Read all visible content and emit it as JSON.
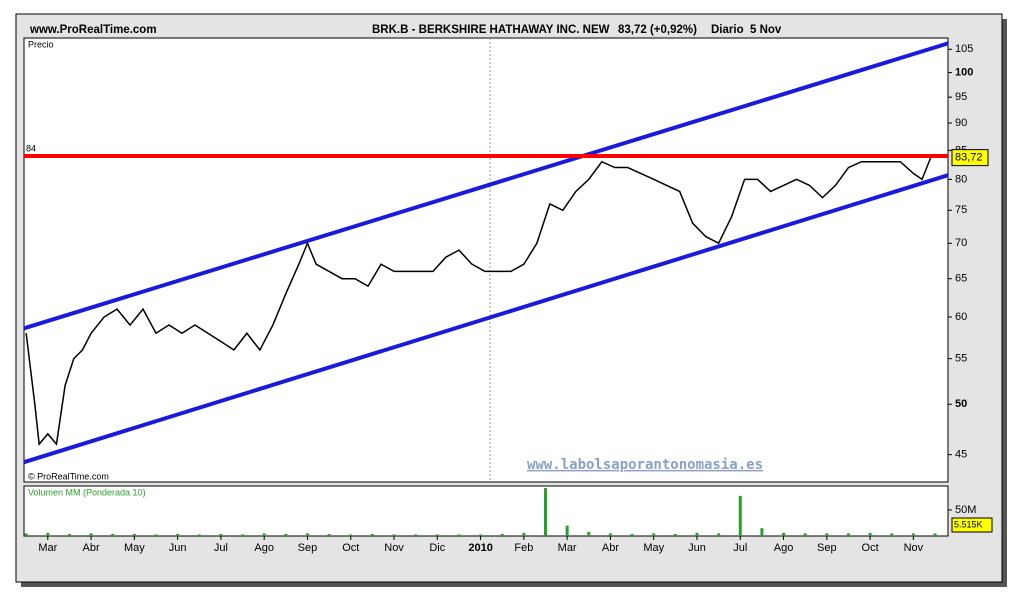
{
  "header": {
    "site": "www.ProRealTime.com",
    "instrument": "BRK.B - BERKSHIRE HATHAWAY INC. NEW",
    "quote": "83,72 (+0,92%)",
    "period": "Diario  5 Nov"
  },
  "chart_data": [
    {
      "type": "line",
      "y_axis_label": "Precio",
      "copyright": "© ProRealTime.com",
      "watermark": "www.labolsaporantonomasia.es",
      "color": "#000000",
      "log_scale": true,
      "x": [
        -0.5,
        -0.3,
        -0.2,
        0,
        0.2,
        0.4,
        0.6,
        0.8,
        1.0,
        1.3,
        1.6,
        1.9,
        2.2,
        2.5,
        2.8,
        3.1,
        3.4,
        3.7,
        4.0,
        4.3,
        4.6,
        4.9,
        5.2,
        5.5,
        5.8,
        6.0,
        6.2,
        6.5,
        6.8,
        7.1,
        7.4,
        7.7,
        8.0,
        8.3,
        8.6,
        8.9,
        9.2,
        9.5,
        9.8,
        10.1,
        10.4,
        10.7,
        11.0,
        11.3,
        11.6,
        11.9,
        12.2,
        12.5,
        12.8,
        13.1,
        13.4,
        13.7,
        14.0,
        14.3,
        14.6,
        14.9,
        15.2,
        15.5,
        15.8,
        16.1,
        16.4,
        16.7,
        17.0,
        17.3,
        17.6,
        17.9,
        18.2,
        18.5,
        18.8,
        19.1,
        19.4,
        19.7,
        20.0,
        20.2,
        20.4
      ],
      "values": [
        58,
        50,
        46,
        47,
        46,
        52,
        55,
        56,
        58,
        60,
        61,
        59,
        61,
        58,
        59,
        58,
        59,
        58,
        57,
        56,
        58,
        56,
        59,
        63,
        67,
        70,
        67,
        66,
        65,
        65,
        64,
        67,
        66,
        66,
        66,
        66,
        68,
        69,
        67,
        66,
        66,
        66,
        67,
        70,
        76,
        75,
        78,
        80,
        83,
        82,
        82,
        81,
        80,
        79,
        78,
        73,
        71,
        70,
        74,
        80,
        80,
        78,
        79,
        80,
        79,
        77,
        79,
        82,
        83,
        83,
        83,
        83,
        81,
        80,
        83.72
      ],
      "last_price": {
        "value": 83.72,
        "label": "83,72"
      },
      "last_price_color": "#ffff00",
      "trend_lines": [
        {
          "x": [
            -0.55,
            20.8
          ],
          "values": [
            58.6,
            106.3
          ],
          "color": "#1a1adb"
        },
        {
          "x": [
            -0.55,
            20.8
          ],
          "values": [
            44.3,
            80.7
          ],
          "color": "#1a1adb"
        }
      ],
      "hline": 84,
      "hline_color": "#ff0000",
      "xlim": [
        -0.55,
        20.8
      ],
      "xticks": [
        {
          "value": 0,
          "label": "Mar"
        },
        {
          "value": 1,
          "label": "Abr"
        },
        {
          "value": 2,
          "label": "May"
        },
        {
          "value": 3,
          "label": "Jun"
        },
        {
          "value": 4,
          "label": "Jul"
        },
        {
          "value": 5,
          "label": "Ago"
        },
        {
          "value": 6,
          "label": "Sep"
        },
        {
          "value": 7,
          "label": "Oct"
        },
        {
          "value": 8,
          "label": "Nov"
        },
        {
          "value": 9,
          "label": "Dic"
        },
        {
          "value": 10,
          "label": "2010"
        },
        {
          "value": 11,
          "label": "Feb"
        },
        {
          "value": 12,
          "label": "Mar"
        },
        {
          "value": 13,
          "label": "Abr"
        },
        {
          "value": 14,
          "label": "May"
        },
        {
          "value": 15,
          "label": "Jun"
        },
        {
          "value": 16,
          "label": "Jul"
        },
        {
          "value": 17,
          "label": "Ago"
        },
        {
          "value": 18,
          "label": "Sep"
        },
        {
          "value": 19,
          "label": "Oct"
        },
        {
          "value": 20,
          "label": "Nov"
        }
      ],
      "ylim": [
        42.5,
        107.5
      ],
      "yticks": [
        45,
        50,
        55,
        60,
        65,
        70,
        75,
        80,
        85,
        90,
        95,
        100,
        105
      ]
    },
    {
      "type": "bar",
      "title": "Volumen MM (Ponderada 10)",
      "color": "#2aa02a",
      "x": [
        -0.5,
        0,
        0.5,
        1,
        1.5,
        2,
        2.5,
        3,
        3.5,
        4,
        4.5,
        5,
        5.5,
        6,
        6.5,
        7,
        7.5,
        8,
        8.5,
        9,
        9.5,
        10,
        10.5,
        11,
        11.5,
        12,
        12.5,
        13,
        13.5,
        14,
        14.5,
        15,
        15.5,
        16,
        16.5,
        17,
        17.5,
        18,
        18.5,
        19,
        19.5,
        20,
        20.5
      ],
      "values": [
        5,
        6,
        4,
        5,
        4,
        4,
        3,
        4,
        3,
        4,
        3,
        5,
        4,
        5,
        4,
        3,
        4,
        3,
        3,
        3,
        3,
        3,
        4,
        6,
        92,
        20,
        8,
        5,
        4,
        5,
        4,
        6,
        5,
        77,
        15,
        6,
        5,
        5,
        5,
        6,
        5,
        5,
        5
      ],
      "last_volume": "5.515K",
      "xlim": [
        -0.55,
        20.8
      ],
      "ylim": [
        0,
        96
      ],
      "yticks": [
        {
          "value": 50,
          "label": "50M"
        }
      ]
    }
  ]
}
